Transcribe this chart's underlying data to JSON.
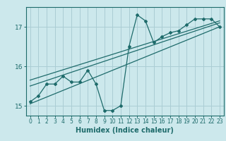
{
  "xlabel": "Humidex (Indice chaleur)",
  "ylabel": "",
  "bg_color": "#cce8ec",
  "grid_color": "#aacdd4",
  "line_color": "#1e6b6b",
  "xlim": [
    -0.5,
    23.5
  ],
  "ylim": [
    14.75,
    17.5
  ],
  "yticks": [
    15,
    16,
    17
  ],
  "xticks": [
    0,
    1,
    2,
    3,
    4,
    5,
    6,
    7,
    8,
    9,
    10,
    11,
    12,
    13,
    14,
    15,
    16,
    17,
    18,
    19,
    20,
    21,
    22,
    23
  ],
  "curve1_x": [
    0,
    1,
    2,
    3,
    4,
    5,
    6,
    7,
    8,
    9,
    10,
    11,
    12,
    13,
    14,
    15,
    16,
    17,
    18,
    19,
    20,
    21,
    22,
    23
  ],
  "curve1_y": [
    15.1,
    15.25,
    15.55,
    15.55,
    15.75,
    15.6,
    15.6,
    15.9,
    15.55,
    14.88,
    14.88,
    15.0,
    16.5,
    17.3,
    17.15,
    16.6,
    16.75,
    16.85,
    16.9,
    17.05,
    17.2,
    17.2,
    17.2,
    17.0
  ],
  "line1_x": [
    0,
    23
  ],
  "line1_y": [
    15.05,
    17.0
  ],
  "line2_x": [
    0,
    23
  ],
  "line2_y": [
    15.5,
    17.1
  ],
  "line3_x": [
    0,
    23
  ],
  "line3_y": [
    15.65,
    17.15
  ]
}
